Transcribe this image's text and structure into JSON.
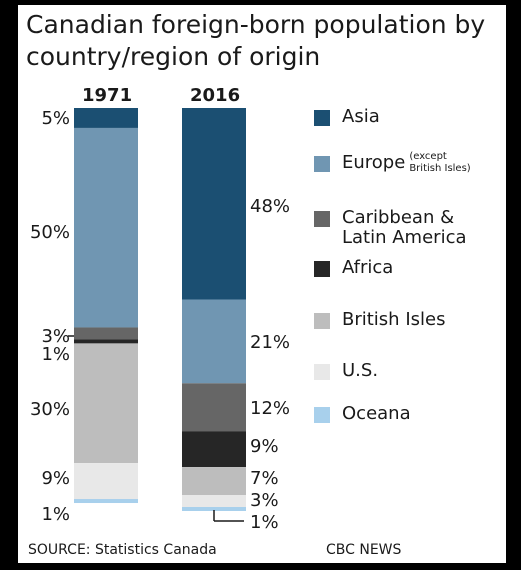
{
  "title": "Canadian foreign-born population by country/region of origin",
  "source": "SOURCE: Statistics Canada",
  "brand": "CBC NEWS",
  "chart_data": {
    "type": "bar",
    "stacked": true,
    "categories": [
      "1971",
      "2016"
    ],
    "ylim": [
      0,
      100
    ],
    "series": [
      {
        "name": "Asia",
        "color": "#1b4f72",
        "values": [
          5,
          48
        ]
      },
      {
        "name": "Europe",
        "note": "(except British Isles)",
        "color": "#7096b2",
        "values": [
          50,
          21
        ]
      },
      {
        "name": "Caribbean & Latin America",
        "color": "#666666",
        "values": [
          3,
          12
        ]
      },
      {
        "name": "Africa",
        "color": "#262626",
        "values": [
          1,
          9
        ]
      },
      {
        "name": "British Isles",
        "color": "#bdbdbd",
        "values": [
          30,
          7
        ]
      },
      {
        "name": "U.S.",
        "color": "#e8e8e8",
        "values": [
          9,
          3
        ]
      },
      {
        "name": "Oceana",
        "color": "#a8d0ec",
        "values": [
          1,
          1
        ]
      }
    ],
    "data_labels": {
      "1971": [
        "5%",
        "50%",
        "3%",
        "1%",
        "30%",
        "9%",
        "1%"
      ],
      "2016": [
        "48%",
        "21%",
        "12%",
        "9%",
        "7%",
        "3%",
        "1%"
      ]
    }
  }
}
